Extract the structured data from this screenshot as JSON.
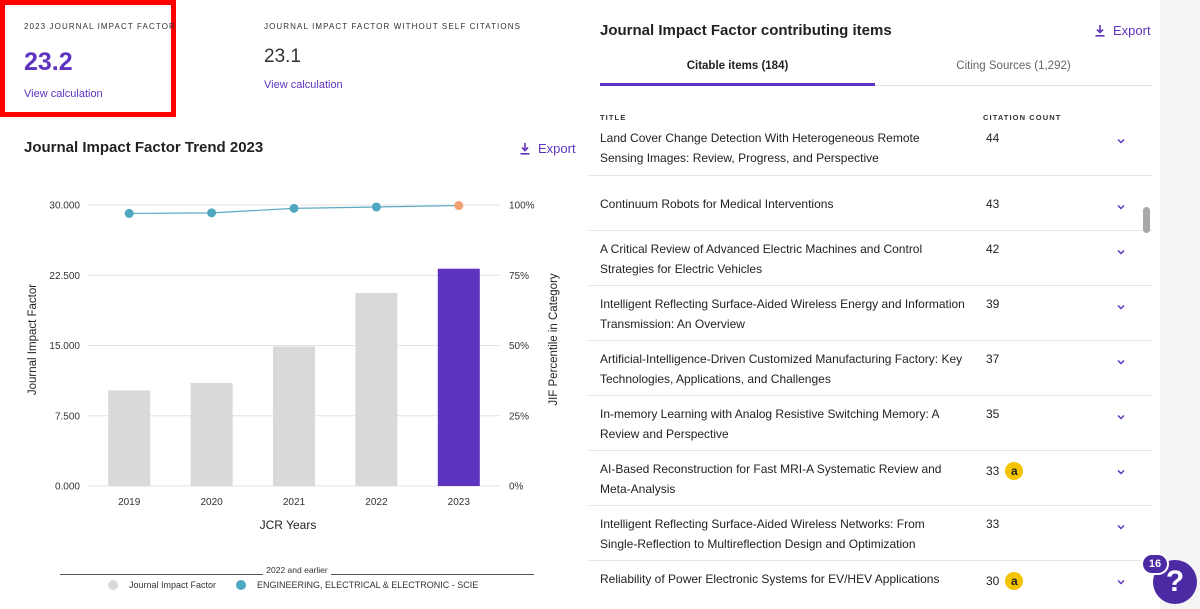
{
  "metrics": {
    "jif_label": "2023 JOURNAL IMPACT FACTOR",
    "jif_value": "23.2",
    "jif_link": "View calculation",
    "jif_wo_label": "JOURNAL IMPACT FACTOR WITHOUT SELF CITATIONS",
    "jif_wo_value": "23.1",
    "jif_wo_link": "View calculation"
  },
  "trend": {
    "title": "Journal Impact Factor Trend 2023",
    "export_label": "Export"
  },
  "chart_data": {
    "type": "bar",
    "title": "Journal Impact Factor Trend 2023",
    "categories": [
      "2019",
      "2020",
      "2021",
      "2022",
      "2023"
    ],
    "series": [
      {
        "name": "Journal Impact Factor",
        "values": [
          10.2,
          11.0,
          14.9,
          20.6,
          23.2
        ],
        "axis": "left"
      },
      {
        "name": "ENGINEERING, ELECTRICAL & ELECTRONIC - SCIE",
        "values": [
          97.0,
          97.2,
          98.8,
          99.3,
          99.8
        ],
        "axis": "right",
        "kind": "line"
      }
    ],
    "xlabel": "JCR Years",
    "ylabel": "Journal Impact Factor",
    "ylabel_right": "JIF Percentile in Category",
    "ylim": [
      0,
      30
    ],
    "ylim_right": [
      0,
      100
    ],
    "yticks": [
      "0.000",
      "7.500",
      "15.000",
      "22.500",
      "30.000"
    ],
    "yticks_right": [
      "0%",
      "25%",
      "50%",
      "75%",
      "100%"
    ],
    "legend_group": "2022 and earlier",
    "colors": {
      "bar_earlier": "#d9d9d9",
      "bar_current": "#5e33bf",
      "line": "#5aa9c2",
      "point": "#4fa8c2",
      "point_current": "#f0a070"
    }
  },
  "items": {
    "title": "Journal Impact Factor contributing items",
    "export_label": "Export",
    "tabs": {
      "citable": "Citable items (184)",
      "citing": "Citing Sources (1,292)"
    },
    "columns": {
      "title": "TITLE",
      "count": "CITATION COUNT"
    },
    "rows": [
      {
        "title": "Land Cover Change Detection With Heterogeneous Remote Sensing Images: Review, Progress, and Perspective",
        "count": "44",
        "oa": false
      },
      {
        "title": "Continuum Robots for Medical Interventions",
        "count": "43",
        "oa": false
      },
      {
        "title": "A Critical Review of Advanced Electric Machines and Control Strategies for Electric Vehicles",
        "count": "42",
        "oa": false
      },
      {
        "title": "Intelligent Reflecting Surface-Aided Wireless Energy and Information Transmission: An Overview",
        "count": "39",
        "oa": false
      },
      {
        "title": "Artificial-Intelligence-Driven Customized Manufacturing Factory: Key Technologies, Applications, and Challenges",
        "count": "37",
        "oa": false
      },
      {
        "title": "In-memory Learning with Analog Resistive Switching Memory: A Review and Perspective",
        "count": "35",
        "oa": false
      },
      {
        "title": "AI-Based Reconstruction for Fast MRI-A Systematic Review and Meta-Analysis",
        "count": "33",
        "oa": true
      },
      {
        "title": "Intelligent Reflecting Surface-Aided Wireless Networks: From Single-Reflection to Multireflection Design and Optimization",
        "count": "33",
        "oa": false
      },
      {
        "title": "Reliability of Power Electronic Systems for EV/HEV Applications",
        "count": "30",
        "oa": true
      }
    ]
  },
  "help": {
    "badge": "16",
    "symbol": "?"
  }
}
